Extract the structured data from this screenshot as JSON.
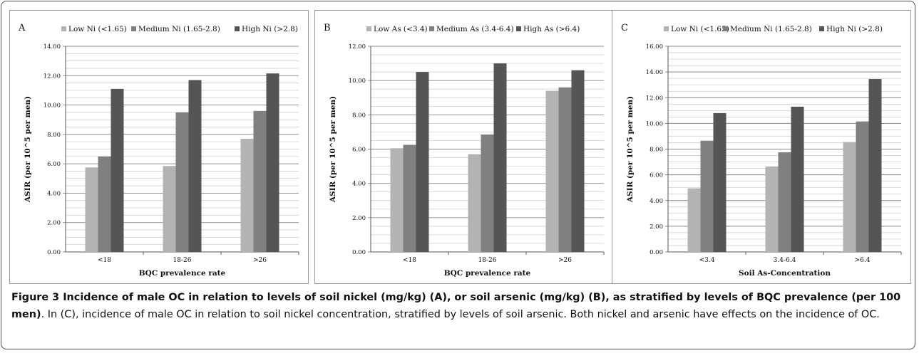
{
  "chart_data": [
    {
      "panel_letter": "A",
      "type": "bar",
      "categories": [
        "<18",
        "18-26",
        ">26"
      ],
      "series": [
        {
          "name": "Low Ni (<1.65)",
          "color": "#b3b3b3",
          "values": [
            5.75,
            5.85,
            7.7
          ]
        },
        {
          "name": "Medium Ni (1.65-2.8)",
          "color": "#808080",
          "values": [
            6.5,
            9.5,
            9.6
          ]
        },
        {
          "name": "High Ni (>2.8)",
          "color": "#555555",
          "values": [
            11.1,
            11.7,
            12.15
          ]
        }
      ],
      "xlabel": "BQC prevalence rate",
      "ylabel": "ASIR (per 10^5 per men)",
      "ylim": [
        0,
        14
      ],
      "yticks": [
        "0.00",
        "2.00",
        "4.00",
        "6.00",
        "8.00",
        "10.00",
        "12.00",
        "14.00"
      ],
      "minor_step": 0.5,
      "legend": "top"
    },
    {
      "panel_letter": "B",
      "type": "bar",
      "categories": [
        "<18",
        "18-26",
        ">26"
      ],
      "series": [
        {
          "name": "Low As (<3.4)",
          "color": "#b3b3b3",
          "values": [
            6.05,
            5.7,
            9.4
          ]
        },
        {
          "name": "Medium As (3.4-6.4)",
          "color": "#808080",
          "values": [
            6.25,
            6.85,
            9.6
          ]
        },
        {
          "name": "High As (>6.4)",
          "color": "#555555",
          "values": [
            10.5,
            11.0,
            10.6
          ]
        }
      ],
      "xlabel": "BQC prevalence rate",
      "ylabel": "ASIR (per 10^5 per men)",
      "ylim": [
        0,
        12
      ],
      "yticks": [
        "0.00",
        "2.00",
        "4.00",
        "6.00",
        "8.00",
        "10.00",
        "12.00"
      ],
      "minor_step": 0.5,
      "legend": "top"
    },
    {
      "panel_letter": "C",
      "type": "bar",
      "categories": [
        "<3.4",
        "3.4-6.4",
        ">6.4"
      ],
      "series": [
        {
          "name": "Low Ni (<1.65)",
          "color": "#b3b3b3",
          "values": [
            4.95,
            6.65,
            8.55
          ]
        },
        {
          "name": "Medium Ni (1.65-2.8)",
          "color": "#808080",
          "values": [
            8.65,
            7.75,
            10.15
          ]
        },
        {
          "name": "High Ni (>2.8)",
          "color": "#555555",
          "values": [
            10.8,
            11.3,
            13.45
          ]
        }
      ],
      "xlabel": "Soil As-Concentration",
      "ylabel": "ASIR (per 10^5 per men)",
      "ylim": [
        0,
        16
      ],
      "yticks": [
        "0.00",
        "2.00",
        "4.00",
        "6.00",
        "8.00",
        "10.00",
        "12.00",
        "14.00",
        "16.00"
      ],
      "minor_step": 0.5,
      "legend": "top"
    }
  ],
  "caption": {
    "bold": "Figure 3 Incidence of male OC in relation to levels of soil nickel (mg/kg) (A), or soil arsenic (mg/kg) (B), as stratified by levels of BQC prevalence (per 100 men)",
    "rest": ". In (C), incidence of male OC in relation to soil nickel concentration, stratified by levels of soil arsenic. Both nickel and arsenic have effects on the incidence of OC."
  }
}
